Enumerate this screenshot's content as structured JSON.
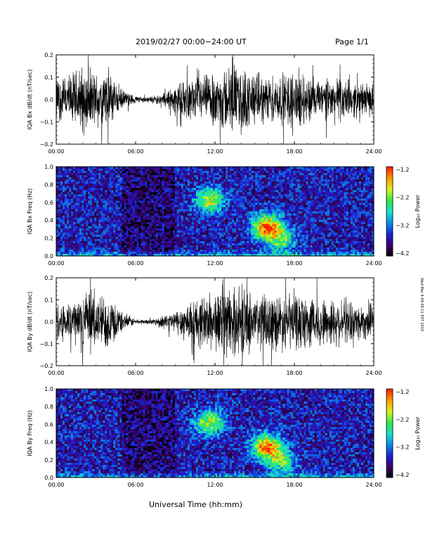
{
  "header": {
    "title": "2019/02/27  00:00−24:00 UT",
    "page": "Page 1/1"
  },
  "footer": {
    "xlabel": "Universal Time (hh:mm)",
    "side_note": "Wed Mar 6 09:09:11 EST 2019"
  },
  "colors": {
    "background": "#ffffff",
    "trace": "#000000",
    "colormap": [
      "#000000",
      "#3a0066",
      "#1b1fd8",
      "#0a8ae6",
      "#18e0d0",
      "#2ee84a",
      "#d8f220",
      "#ff9a00",
      "#ff1e00"
    ]
  },
  "chart_data": [
    {
      "type": "line",
      "ylabel": "IQA Bx dB/dt (nT/sec)",
      "x_ticks": [
        "00:00",
        "06:00",
        "12:00",
        "18:00",
        "24:00"
      ],
      "y_ticks": [
        "0.2",
        "0.1",
        "0.0",
        "−0.1",
        "−0.2"
      ],
      "xlim": [
        0,
        24
      ],
      "ylim": [
        -0.2,
        0.2
      ],
      "envelope": {
        "hours": [
          0,
          1,
          2,
          3,
          4,
          5,
          6,
          7,
          8,
          9,
          10,
          11,
          12,
          13,
          14,
          15,
          16,
          17,
          18,
          19,
          20,
          21,
          22,
          23,
          24
        ],
        "amplitude": [
          0.12,
          0.13,
          0.18,
          0.14,
          0.16,
          0.05,
          0.02,
          0.015,
          0.03,
          0.08,
          0.1,
          0.12,
          0.14,
          0.18,
          0.17,
          0.14,
          0.12,
          0.13,
          0.16,
          0.13,
          0.1,
          0.12,
          0.1,
          0.09,
          0.08
        ]
      }
    },
    {
      "type": "heatmap",
      "ylabel": "IQA Bx Freq (Hz)",
      "x_ticks": [
        "00:00",
        "06:00",
        "12:00",
        "18:00",
        "24:00"
      ],
      "y_ticks": [
        "1.0",
        "0.8",
        "0.6",
        "0.4",
        "0.2",
        "0.0"
      ],
      "xlim": [
        0,
        24
      ],
      "ylim": [
        0,
        1.0
      ],
      "colorbar": {
        "label": "Log₁₀ Power",
        "ticks": [
          "−1.2",
          "−2.2",
          "−3.2",
          "−4.2"
        ],
        "range": [
          -4.2,
          -1.2
        ]
      },
      "features": [
        {
          "hour": 11.6,
          "freq": 0.62,
          "peak": -1.9
        },
        {
          "hour": 15.9,
          "freq": 0.33,
          "peak": -1.3
        },
        {
          "hour": 17.0,
          "freq": 0.18,
          "peak": -2.3
        }
      ]
    },
    {
      "type": "line",
      "ylabel": "IQA By dB/dt (nT/sec)",
      "x_ticks": [
        "00:00",
        "06:00",
        "12:00",
        "18:00",
        "24:00"
      ],
      "y_ticks": [
        "0.2",
        "0.1",
        "0.0",
        "−0.1",
        "−0.2"
      ],
      "xlim": [
        0,
        24
      ],
      "ylim": [
        -0.2,
        0.2
      ],
      "envelope": {
        "hours": [
          0,
          1,
          2,
          3,
          4,
          5,
          6,
          7,
          8,
          9,
          10,
          11,
          12,
          13,
          14,
          15,
          16,
          17,
          18,
          19,
          20,
          21,
          22,
          23,
          24
        ],
        "amplitude": [
          0.1,
          0.12,
          0.16,
          0.14,
          0.15,
          0.05,
          0.015,
          0.012,
          0.03,
          0.06,
          0.12,
          0.14,
          0.16,
          0.18,
          0.17,
          0.16,
          0.15,
          0.15,
          0.16,
          0.14,
          0.13,
          0.13,
          0.11,
          0.1,
          0.09
        ]
      }
    },
    {
      "type": "heatmap",
      "ylabel": "IQA By Freq (Hz)",
      "x_ticks": [
        "00:00",
        "06:00",
        "12:00",
        "18:00",
        "24:00"
      ],
      "y_ticks": [
        "1.0",
        "0.8",
        "0.6",
        "0.4",
        "0.2",
        "0.0"
      ],
      "xlim": [
        0,
        24
      ],
      "ylim": [
        0,
        1.0
      ],
      "colorbar": {
        "label": "Log₁₀ Power",
        "ticks": [
          "−1.2",
          "−2.2",
          "−3.2",
          "−4.2"
        ],
        "range": [
          -4.2,
          -1.2
        ]
      },
      "features": [
        {
          "hour": 11.6,
          "freq": 0.62,
          "peak": -1.9
        },
        {
          "hour": 15.9,
          "freq": 0.35,
          "peak": -1.3
        },
        {
          "hour": 17.0,
          "freq": 0.18,
          "peak": -2.3
        }
      ]
    }
  ]
}
